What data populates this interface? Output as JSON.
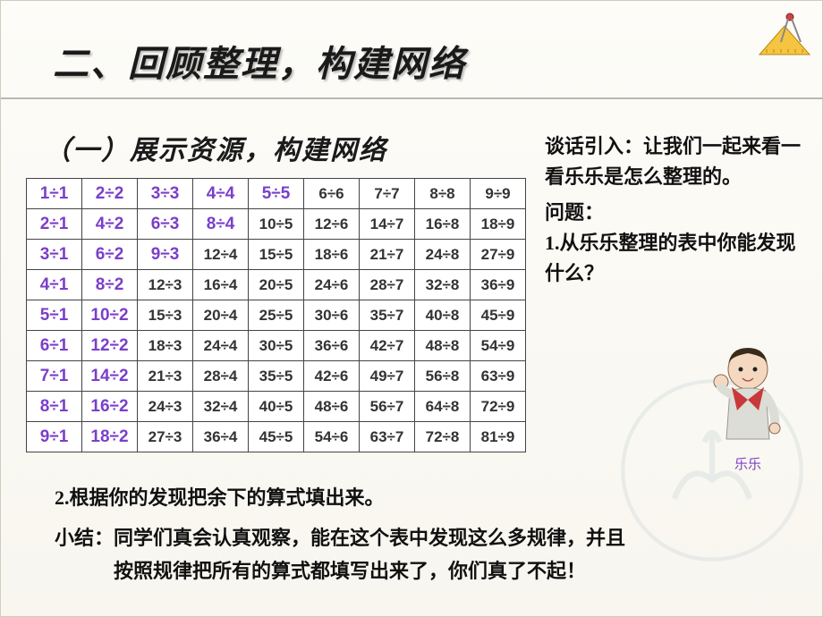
{
  "title": "二、回顾整理，构建网络",
  "subtitle": "（一）展示资源，构建网络",
  "intro_label": "谈话引入：",
  "intro_text": "让我们一起来看一看乐乐是怎么整理的。",
  "question_label": "问题：",
  "question1_num": "1.",
  "question1": "从乐乐整理的表中你能发现什么？",
  "question2_num": "2.",
  "question2": "根据你的发现把余下的算式填出来。",
  "summary_label": "小结：",
  "summary_line1": "同学们真会认真观察，能在这个表中发现这么多规律，并且",
  "summary_line2": "按照规律把所有的算式都填写出来了，你们真了不起！",
  "child_name": "乐乐",
  "colors": {
    "highlight": "#7a3fc9",
    "text": "#111111",
    "border": "#444444",
    "bg_top": "#fdfcf8",
    "bg_bottom": "#f8f6ef"
  },
  "table": {
    "rows": [
      [
        {
          "t": "1÷1",
          "h": true
        },
        {
          "t": "2÷2",
          "h": true
        },
        {
          "t": "3÷3",
          "h": true
        },
        {
          "t": "4÷4",
          "h": true
        },
        {
          "t": "5÷5",
          "h": true
        },
        {
          "t": "6÷6"
        },
        {
          "t": "7÷7"
        },
        {
          "t": "8÷8"
        },
        {
          "t": "9÷9"
        }
      ],
      [
        {
          "t": "2÷1",
          "h": true
        },
        {
          "t": "4÷2",
          "h": true
        },
        {
          "t": "6÷3",
          "h": true
        },
        {
          "t": "8÷4",
          "h": true
        },
        {
          "t": "10÷5"
        },
        {
          "t": "12÷6"
        },
        {
          "t": "14÷7"
        },
        {
          "t": "16÷8"
        },
        {
          "t": "18÷9"
        }
      ],
      [
        {
          "t": "3÷1",
          "h": true
        },
        {
          "t": "6÷2",
          "h": true
        },
        {
          "t": "9÷3",
          "h": true
        },
        {
          "t": "12÷4"
        },
        {
          "t": "15÷5"
        },
        {
          "t": "18÷6"
        },
        {
          "t": "21÷7"
        },
        {
          "t": "24÷8"
        },
        {
          "t": "27÷9"
        }
      ],
      [
        {
          "t": "4÷1",
          "h": true
        },
        {
          "t": "8÷2",
          "h": true
        },
        {
          "t": "12÷3"
        },
        {
          "t": "16÷4"
        },
        {
          "t": "20÷5"
        },
        {
          "t": "24÷6"
        },
        {
          "t": "28÷7"
        },
        {
          "t": "32÷8"
        },
        {
          "t": "36÷9"
        }
      ],
      [
        {
          "t": "5÷1",
          "h": true
        },
        {
          "t": "10÷2",
          "h": true
        },
        {
          "t": "15÷3"
        },
        {
          "t": "20÷4"
        },
        {
          "t": "25÷5"
        },
        {
          "t": "30÷6"
        },
        {
          "t": "35÷7"
        },
        {
          "t": "40÷8"
        },
        {
          "t": "45÷9"
        }
      ],
      [
        {
          "t": "6÷1",
          "h": true
        },
        {
          "t": "12÷2",
          "h": true
        },
        {
          "t": "18÷3"
        },
        {
          "t": "24÷4"
        },
        {
          "t": "30÷5"
        },
        {
          "t": "36÷6"
        },
        {
          "t": "42÷7"
        },
        {
          "t": "48÷8"
        },
        {
          "t": "54÷9"
        }
      ],
      [
        {
          "t": "7÷1",
          "h": true
        },
        {
          "t": "14÷2",
          "h": true
        },
        {
          "t": "21÷3"
        },
        {
          "t": "28÷4"
        },
        {
          "t": "35÷5"
        },
        {
          "t": "42÷6"
        },
        {
          "t": "49÷7"
        },
        {
          "t": "56÷8"
        },
        {
          "t": "63÷9"
        }
      ],
      [
        {
          "t": "8÷1",
          "h": true
        },
        {
          "t": "16÷2",
          "h": true
        },
        {
          "t": "24÷3"
        },
        {
          "t": "32÷4"
        },
        {
          "t": "40÷5"
        },
        {
          "t": "48÷6"
        },
        {
          "t": "56÷7"
        },
        {
          "t": "64÷8"
        },
        {
          "t": "72÷9"
        }
      ],
      [
        {
          "t": "9÷1",
          "h": true
        },
        {
          "t": "18÷2",
          "h": true
        },
        {
          "t": "27÷3"
        },
        {
          "t": "36÷4"
        },
        {
          "t": "45÷5"
        },
        {
          "t": "54÷6"
        },
        {
          "t": "63÷7"
        },
        {
          "t": "72÷8"
        },
        {
          "t": "81÷9"
        }
      ]
    ]
  }
}
